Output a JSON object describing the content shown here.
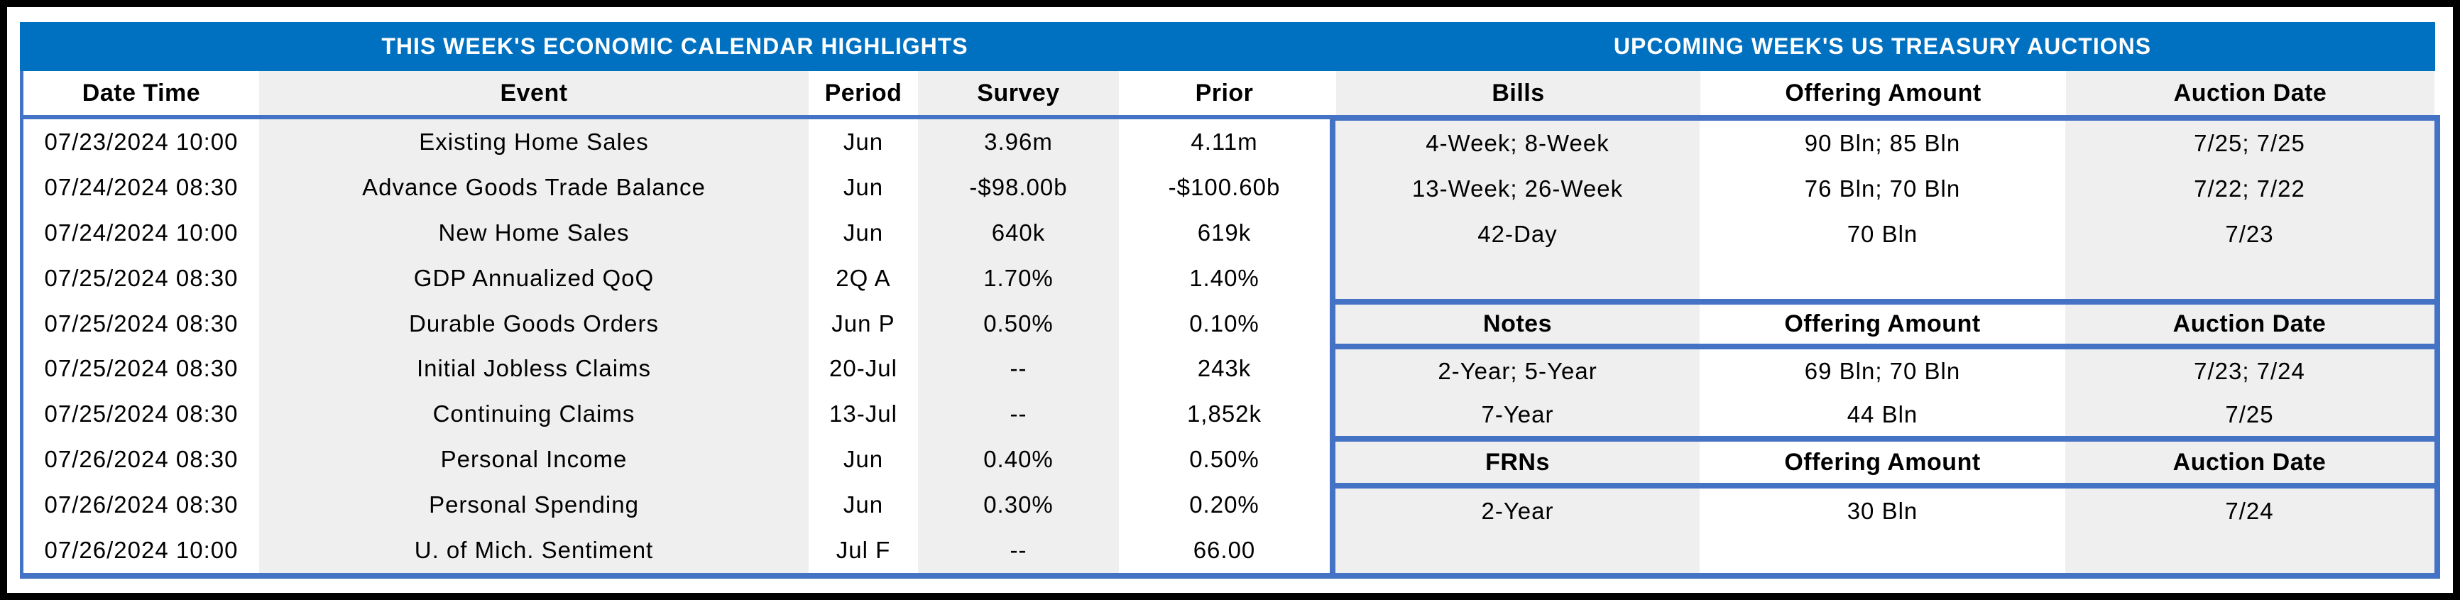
{
  "colors": {
    "title_band_blue": "#0070C0",
    "accent_border_blue": "#4472C4",
    "column_shade_gray": "#EFEFEF",
    "frame_black": "#000000",
    "title_text": "#FFFFFF"
  },
  "economic_calendar": {
    "title": "THIS WEEK'S ECONOMIC CALENDAR HIGHLIGHTS",
    "columns": [
      "Date Time",
      "Event",
      "Period",
      "Survey",
      "Prior"
    ],
    "rows": [
      {
        "date_time": "07/23/2024 10:00",
        "event": "Existing Home Sales",
        "period": "Jun",
        "survey": "3.96m",
        "prior": "4.11m"
      },
      {
        "date_time": "07/24/2024 08:30",
        "event": "Advance Goods Trade Balance",
        "period": "Jun",
        "survey": "-$98.00b",
        "prior": "-$100.60b"
      },
      {
        "date_time": "07/24/2024 10:00",
        "event": "New Home Sales",
        "period": "Jun",
        "survey": "640k",
        "prior": "619k"
      },
      {
        "date_time": "07/25/2024 08:30",
        "event": "GDP Annualized QoQ",
        "period": "2Q A",
        "survey": "1.70%",
        "prior": "1.40%"
      },
      {
        "date_time": "07/25/2024 08:30",
        "event": "Durable Goods Orders",
        "period": "Jun P",
        "survey": "0.50%",
        "prior": "0.10%"
      },
      {
        "date_time": "07/25/2024 08:30",
        "event": "Initial Jobless Claims",
        "period": "20-Jul",
        "survey": "--",
        "prior": "243k"
      },
      {
        "date_time": "07/25/2024 08:30",
        "event": "Continuing Claims",
        "period": "13-Jul",
        "survey": "--",
        "prior": "1,852k"
      },
      {
        "date_time": "07/26/2024 08:30",
        "event": "Personal Income",
        "period": "Jun",
        "survey": "0.40%",
        "prior": "0.50%"
      },
      {
        "date_time": "07/26/2024 08:30",
        "event": "Personal Spending",
        "period": "Jun",
        "survey": "0.30%",
        "prior": "0.20%"
      },
      {
        "date_time": "07/26/2024 10:00",
        "event": "U. of Mich. Sentiment",
        "period": "Jul F",
        "survey": "--",
        "prior": "66.00"
      }
    ]
  },
  "treasury_auctions": {
    "title": "UPCOMING WEEK'S US TREASURY AUCTIONS",
    "sections": [
      {
        "name": "Bills",
        "columns": [
          "Bills",
          "Offering Amount",
          "Auction Date"
        ],
        "rows": [
          {
            "security": "4-Week; 8-Week",
            "offering_amount": "90 Bln; 85 Bln",
            "auction_date": "7/25; 7/25"
          },
          {
            "security": "13-Week; 26-Week",
            "offering_amount": "76 Bln; 70 Bln",
            "auction_date": "7/22; 7/22"
          },
          {
            "security": "42-Day",
            "offering_amount": "70 Bln",
            "auction_date": "7/23"
          }
        ]
      },
      {
        "name": "Notes",
        "columns": [
          "Notes",
          "Offering Amount",
          "Auction Date"
        ],
        "rows": [
          {
            "security": "2-Year; 5-Year",
            "offering_amount": "69 Bln; 70 Bln",
            "auction_date": "7/23; 7/24"
          },
          {
            "security": "7-Year",
            "offering_amount": "44 Bln",
            "auction_date": "7/25"
          }
        ]
      },
      {
        "name": "FRNs",
        "columns": [
          "FRNs",
          "Offering Amount",
          "Auction Date"
        ],
        "rows": [
          {
            "security": "2-Year",
            "offering_amount": "30 Bln",
            "auction_date": "7/24"
          }
        ]
      }
    ]
  }
}
